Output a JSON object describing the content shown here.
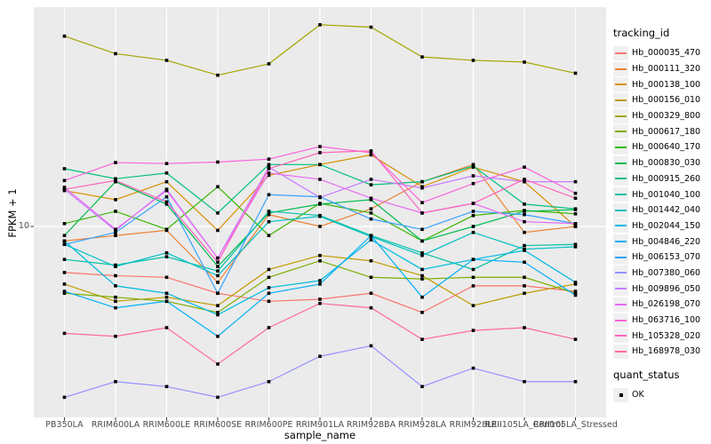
{
  "chart_data": {
    "type": "line",
    "xlabel": "sample_name",
    "ylabel": "FPKM + 1",
    "y_scale": "log10",
    "y_ticks": [
      "10"
    ],
    "ylim_log_range": [
      1.3,
      100
    ],
    "grid": "on",
    "panel_bg": "#EBEBEB",
    "grid_color": "#FFFFFF",
    "tick_label_color": "#4D4D4D",
    "point_shape": "filled-square",
    "point_color": "#000000",
    "legend_position": "right",
    "categories": [
      "PB350LA",
      "RRIM600LA",
      "RRIM600LE",
      "RRIM600SE",
      "RRIM600PE",
      "RRIM901LA",
      "RRIM928BA",
      "RRIM928LA",
      "RRIM928LE",
      "RRII105LA_Control",
      "RRII105LA_Stressed"
    ],
    "series": [
      {
        "name": "Hb_000035_470",
        "color": "#F8766D",
        "values": [
          6.2,
          6.0,
          5.9,
          5.0,
          4.6,
          4.7,
          5.0,
          4.1,
          5.4,
          5.4,
          5.1
        ]
      },
      {
        "name": "Hb_000111_320",
        "color": "#EB8335",
        "values": [
          8.6,
          9.1,
          9.6,
          5.6,
          11.3,
          10.0,
          12.0,
          15.9,
          19.0,
          9.4,
          10.0
        ]
      },
      {
        "name": "Hb_000138_100",
        "color": "#D89000",
        "values": [
          14.5,
          13.2,
          15.9,
          9.6,
          17.0,
          19.0,
          21.0,
          15.1,
          18.5,
          15.9,
          10.0
        ]
      },
      {
        "name": "Hb_000156_010",
        "color": "#C09B00",
        "values": [
          5.5,
          4.6,
          4.8,
          4.4,
          6.4,
          7.4,
          7.0,
          6.0,
          4.4,
          5.0,
          5.5
        ]
      },
      {
        "name": "Hb_000329_800",
        "color": "#A3A500",
        "values": [
          72,
          60,
          56,
          48,
          54,
          81,
          79,
          58,
          56,
          55,
          49
        ]
      },
      {
        "name": "Hb_000617_180",
        "color": "#7CAE00",
        "values": [
          5.0,
          4.8,
          4.6,
          4.1,
          5.9,
          7.0,
          5.9,
          5.8,
          5.9,
          5.9,
          5.0
        ]
      },
      {
        "name": "Hb_000640_170",
        "color": "#39B600",
        "values": [
          10.3,
          11.7,
          9.7,
          15.1,
          9.1,
          12.7,
          11.5,
          8.6,
          11.2,
          11.8,
          11.4
        ]
      },
      {
        "name": "Hb_000830_030",
        "color": "#00BB4E",
        "values": [
          9.1,
          15.9,
          12.6,
          6.6,
          11.5,
          12.6,
          13.2,
          8.6,
          10.0,
          11.7,
          11.9
        ]
      },
      {
        "name": "Hb_000915_260",
        "color": "#00BF7D",
        "values": [
          18.2,
          16.4,
          17.4,
          11.5,
          19.0,
          19.0,
          15.4,
          15.9,
          18.7,
          12.6,
          12.0
        ]
      },
      {
        "name": "Hb_001040_100",
        "color": "#00C1A3",
        "values": [
          7.1,
          6.7,
          7.3,
          6.3,
          11.7,
          11.2,
          9.1,
          7.6,
          6.4,
          8.2,
          8.3
        ]
      },
      {
        "name": "Hb_001442_040",
        "color": "#00BFC4",
        "values": [
          8.3,
          6.6,
          7.6,
          6.0,
          10.5,
          11.1,
          9.0,
          7.4,
          9.4,
          7.9,
          8.1
        ]
      },
      {
        "name": "Hb_002044_150",
        "color": "#00BAE0",
        "values": [
          8.6,
          5.4,
          5.0,
          4.0,
          5.3,
          5.7,
          8.7,
          6.4,
          7.1,
          7.8,
          5.6
        ]
      },
      {
        "name": "Hb_004846_220",
        "color": "#00B0F6",
        "values": [
          5.1,
          4.3,
          4.6,
          3.2,
          5.0,
          5.5,
          9.1,
          4.8,
          7.1,
          6.9,
          4.9
        ]
      },
      {
        "name": "Hb_006153_070",
        "color": "#35A2FF",
        "values": [
          8.3,
          9.4,
          13.6,
          5.0,
          13.9,
          13.6,
          10.8,
          9.7,
          11.7,
          11.3,
          10.3
        ]
      },
      {
        "name": "Hb_007380_060",
        "color": "#9590FF",
        "values": [
          1.7,
          2.0,
          1.9,
          1.7,
          2.0,
          2.6,
          2.9,
          1.9,
          2.3,
          2.0,
          2.0
        ]
      },
      {
        "name": "Hb_009896_050",
        "color": "#C77CFF",
        "values": [
          14.7,
          9.6,
          14.7,
          7.2,
          18.5,
          13.5,
          16.3,
          14.9,
          16.9,
          15.9,
          15.9
        ]
      },
      {
        "name": "Hb_026198_070",
        "color": "#E76BF3",
        "values": [
          15.0,
          9.7,
          14.5,
          7.2,
          17.4,
          16.3,
          13.4,
          11.5,
          12.7,
          10.5,
          10.3
        ]
      },
      {
        "name": "Hb_063716_100",
        "color": "#FA62DB",
        "values": [
          16.1,
          19.4,
          19.2,
          19.5,
          20.1,
          22.9,
          21.5,
          12.8,
          15.6,
          18.5,
          14.1
        ]
      },
      {
        "name": "Hb_105328_020",
        "color": "#FF62BC",
        "values": [
          14.7,
          16.1,
          12.9,
          6.9,
          18.2,
          21.5,
          21.9,
          11.5,
          12.7,
          16.3,
          13.4
        ]
      },
      {
        "name": "Hb_168978_030",
        "color": "#FF6A98",
        "values": [
          3.3,
          3.2,
          3.5,
          2.4,
          3.5,
          4.5,
          4.3,
          3.1,
          3.4,
          3.5,
          3.1
        ]
      }
    ],
    "legend": {
      "tracking_title": "tracking_id",
      "quant_title": "quant_status",
      "quant_items": [
        {
          "label": "OK"
        }
      ]
    }
  }
}
